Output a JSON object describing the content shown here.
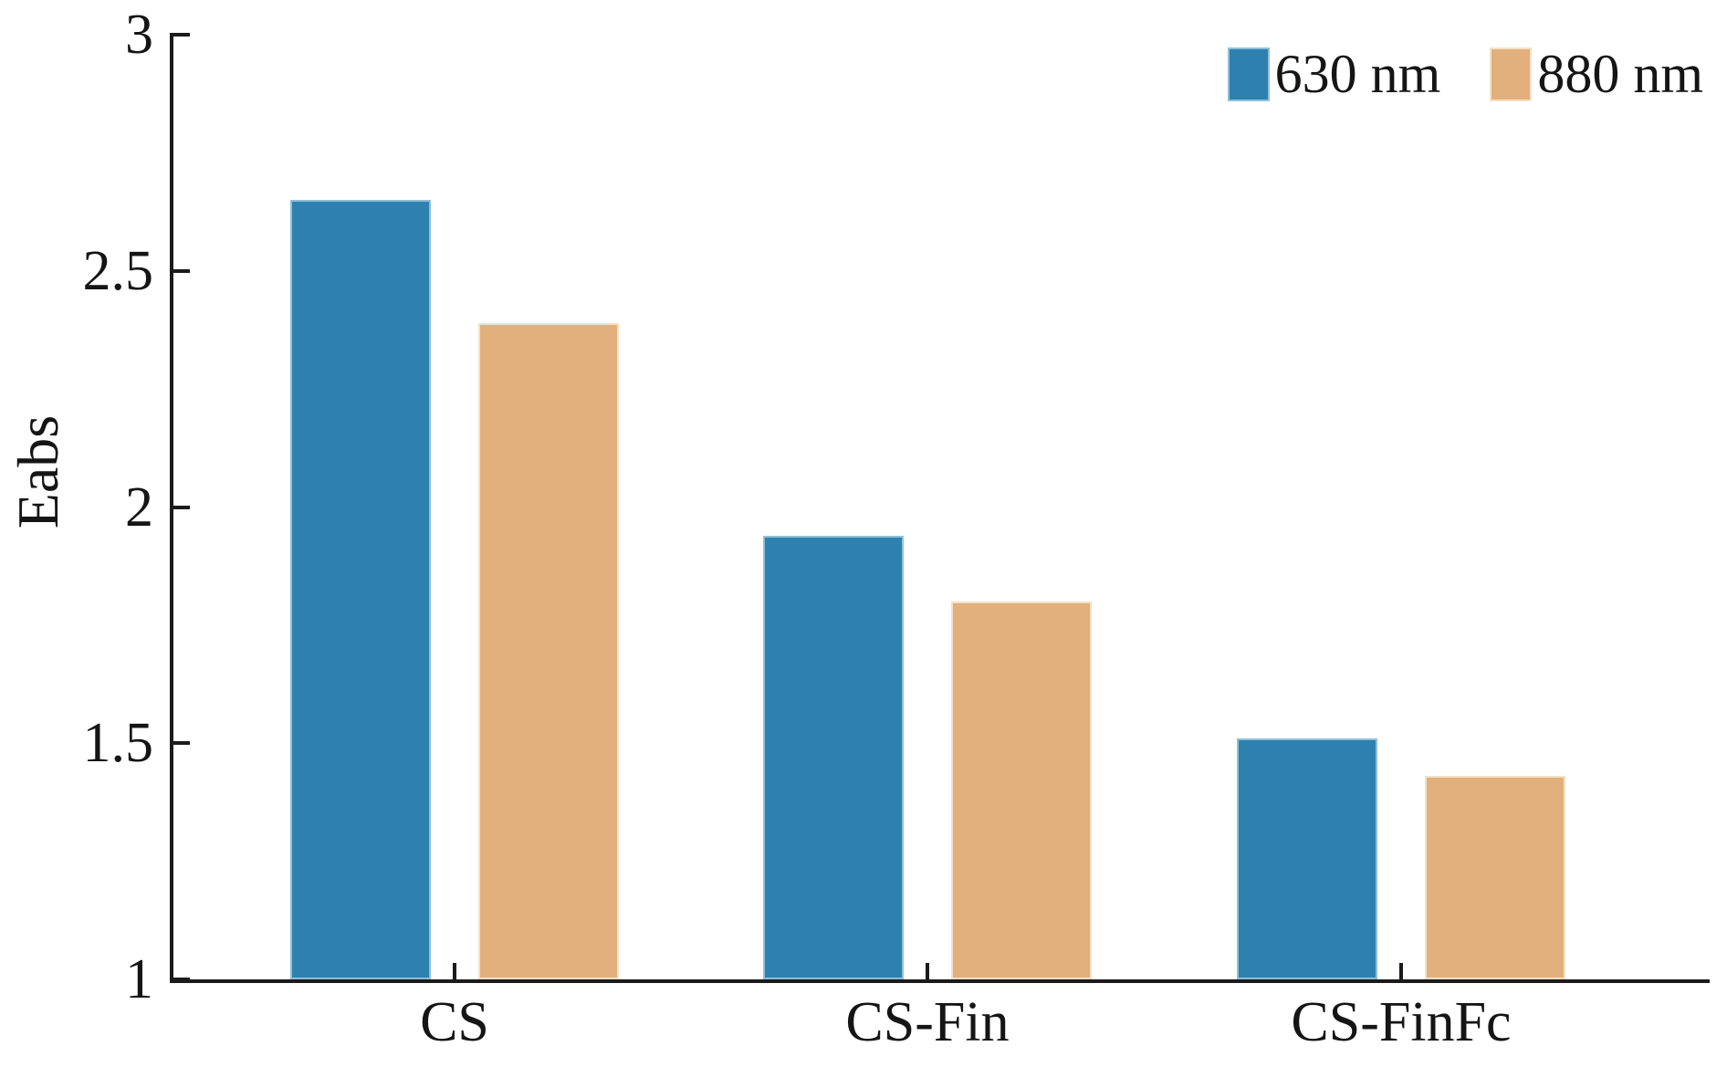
{
  "figure": {
    "background": "#ffffff",
    "axis_color": "#1b1b1b",
    "text_color": "#151515"
  },
  "chart_data": {
    "type": "bar",
    "title": "",
    "xlabel": "",
    "ylabel": "Eabs",
    "ylim": [
      1,
      3
    ],
    "grid": false,
    "legend_position": "top-right",
    "categories": [
      "CS",
      "CS-Fin",
      "CS-FinFc"
    ],
    "yticks": {
      "values": [
        3,
        2.5,
        2,
        1.5,
        1
      ],
      "labels": [
        "3",
        "2.5",
        "2",
        "1.5",
        "1"
      ]
    },
    "series": [
      {
        "name": "630 nm",
        "color": "#2E81AE",
        "edge_color": "#8FC0DA",
        "values": [
          2.65,
          1.94,
          1.51
        ]
      },
      {
        "name": "880 nm",
        "color": "#E2B07C",
        "edge_color": "#F4E0C6",
        "values": [
          2.39,
          1.8,
          1.43
        ]
      }
    ]
  }
}
